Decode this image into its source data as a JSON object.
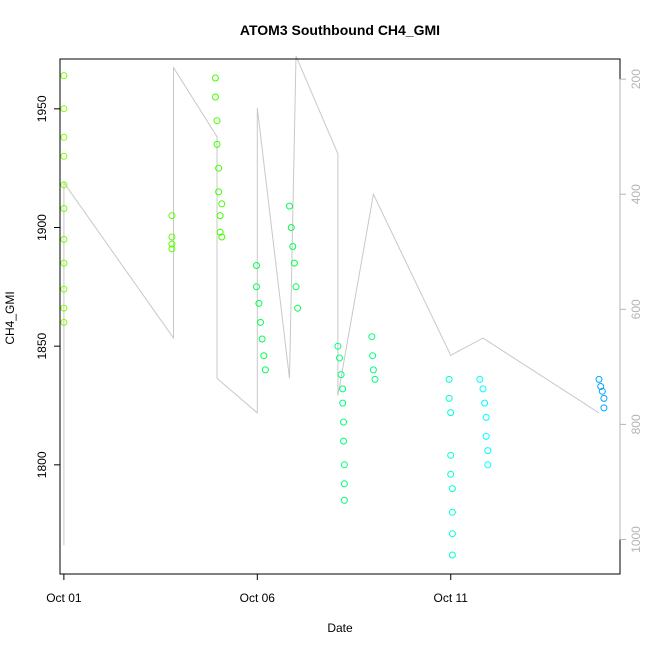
{
  "chart_data": {
    "type": "scatter",
    "title": "ATOM3 Southbound CH4_GMI",
    "xlabel": "Date",
    "ylabel": "CH4_GMI",
    "x_axis": {
      "type": "date",
      "range": [
        "2016-09-30T21:36",
        "2016-10-15T09:00"
      ],
      "ticks": [
        {
          "value": "2016-10-01",
          "label": "Oct 01"
        },
        {
          "value": "2016-10-06",
          "label": "Oct 06"
        },
        {
          "value": "2016-10-11",
          "label": "Oct 11"
        }
      ]
    },
    "y_axis": {
      "range": [
        1754,
        1971
      ],
      "ticks": [
        1800,
        1850,
        1900,
        1950
      ]
    },
    "y2_axis": {
      "range": [
        1060,
        165
      ],
      "inverted": true,
      "ticks": [
        200,
        400,
        600,
        800,
        1000
      ],
      "color": "#b5b5b5"
    },
    "grid": false,
    "legend": "none",
    "series": [
      {
        "marker": "open-circle",
        "color_scale": [
          "#7fff00",
          "#00ff7f",
          "#00bfff",
          "#1e90ff"
        ],
        "points": [
          {
            "x": "2016-10-01T00:00",
            "y": 1964,
            "color": "#80ff00"
          },
          {
            "x": "2016-10-01T00:00",
            "y": 1950,
            "color": "#80ff00"
          },
          {
            "x": "2016-10-01T00:00",
            "y": 1938,
            "color": "#80ff00"
          },
          {
            "x": "2016-10-01T00:00",
            "y": 1930,
            "color": "#80ff00"
          },
          {
            "x": "2016-10-01T00:00",
            "y": 1918,
            "color": "#80ff00"
          },
          {
            "x": "2016-10-01T00:00",
            "y": 1908,
            "color": "#80ff00"
          },
          {
            "x": "2016-10-01T00:00",
            "y": 1895,
            "color": "#80ff00"
          },
          {
            "x": "2016-10-01T00:00",
            "y": 1885,
            "color": "#80ff00"
          },
          {
            "x": "2016-10-01T00:00",
            "y": 1874,
            "color": "#80ff00"
          },
          {
            "x": "2016-10-01T00:00",
            "y": 1866,
            "color": "#80ff00"
          },
          {
            "x": "2016-10-01T00:00",
            "y": 1860,
            "color": "#80ff00"
          },
          {
            "x": "2016-10-03T19:00",
            "y": 1905,
            "color": "#5cff00"
          },
          {
            "x": "2016-10-03T19:00",
            "y": 1896,
            "color": "#5cff00"
          },
          {
            "x": "2016-10-03T19:00",
            "y": 1893,
            "color": "#5cff00"
          },
          {
            "x": "2016-10-03T19:00",
            "y": 1891,
            "color": "#5cff00"
          },
          {
            "x": "2016-10-04T22:00",
            "y": 1963,
            "color": "#40ff00"
          },
          {
            "x": "2016-10-04T22:00",
            "y": 1955,
            "color": "#40ff00"
          },
          {
            "x": "2016-10-04T23:00",
            "y": 1945,
            "color": "#40ff00"
          },
          {
            "x": "2016-10-04T23:00",
            "y": 1935,
            "color": "#40ff00"
          },
          {
            "x": "2016-10-05T00:00",
            "y": 1925,
            "color": "#40ff00"
          },
          {
            "x": "2016-10-05T00:00",
            "y": 1915,
            "color": "#40ff00"
          },
          {
            "x": "2016-10-05T01:00",
            "y": 1905,
            "color": "#40ff00"
          },
          {
            "x": "2016-10-05T01:00",
            "y": 1898,
            "color": "#40ff00"
          },
          {
            "x": "2016-10-05T02:00",
            "y": 1910,
            "color": "#40ff00"
          },
          {
            "x": "2016-10-05T02:00",
            "y": 1896,
            "color": "#40ff00"
          },
          {
            "x": "2016-10-05T23:30",
            "y": 1884,
            "color": "#00ff4a"
          },
          {
            "x": "2016-10-05T23:30",
            "y": 1875,
            "color": "#00ff4a"
          },
          {
            "x": "2016-10-06T01:00",
            "y": 1868,
            "color": "#00ff4a"
          },
          {
            "x": "2016-10-06T02:00",
            "y": 1860,
            "color": "#00ff4a"
          },
          {
            "x": "2016-10-06T03:00",
            "y": 1853,
            "color": "#00ff4a"
          },
          {
            "x": "2016-10-06T04:00",
            "y": 1846,
            "color": "#00ff4a"
          },
          {
            "x": "2016-10-06T05:00",
            "y": 1840,
            "color": "#00ff4a"
          },
          {
            "x": "2016-10-06T20:00",
            "y": 1909,
            "color": "#00ff4a"
          },
          {
            "x": "2016-10-06T21:00",
            "y": 1900,
            "color": "#00ff4a"
          },
          {
            "x": "2016-10-06T22:00",
            "y": 1892,
            "color": "#00ff4a"
          },
          {
            "x": "2016-10-06T23:00",
            "y": 1885,
            "color": "#00ff4a"
          },
          {
            "x": "2016-10-07T00:00",
            "y": 1875,
            "color": "#00ff4a"
          },
          {
            "x": "2016-10-07T01:00",
            "y": 1866,
            "color": "#00ff4a"
          },
          {
            "x": "2016-10-08T02:00",
            "y": 1850,
            "color": "#00ff7c"
          },
          {
            "x": "2016-10-08T03:00",
            "y": 1845,
            "color": "#00ff7c"
          },
          {
            "x": "2016-10-08T04:00",
            "y": 1838,
            "color": "#00ff7c"
          },
          {
            "x": "2016-10-08T05:00",
            "y": 1832,
            "color": "#00ff7c"
          },
          {
            "x": "2016-10-08T05:00",
            "y": 1826,
            "color": "#00ff7c"
          },
          {
            "x": "2016-10-08T05:30",
            "y": 1818,
            "color": "#00ff7c"
          },
          {
            "x": "2016-10-08T05:30",
            "y": 1810,
            "color": "#00ff7c"
          },
          {
            "x": "2016-10-08T06:00",
            "y": 1800,
            "color": "#00ff7c"
          },
          {
            "x": "2016-10-08T06:00",
            "y": 1792,
            "color": "#00ff7c"
          },
          {
            "x": "2016-10-08T06:00",
            "y": 1785,
            "color": "#00ff7c"
          },
          {
            "x": "2016-10-08T23:00",
            "y": 1854,
            "color": "#00ff7c"
          },
          {
            "x": "2016-10-08T23:30",
            "y": 1846,
            "color": "#00ff7c"
          },
          {
            "x": "2016-10-09T00:00",
            "y": 1840,
            "color": "#00ff7c"
          },
          {
            "x": "2016-10-09T01:00",
            "y": 1836,
            "color": "#00ff7c"
          },
          {
            "x": "2016-10-10T23:00",
            "y": 1836,
            "color": "#00ffd0"
          },
          {
            "x": "2016-10-10T23:00",
            "y": 1828,
            "color": "#00ffd0"
          },
          {
            "x": "2016-10-11T00:00",
            "y": 1822,
            "color": "#00ffd0"
          },
          {
            "x": "2016-10-11T00:00",
            "y": 1804,
            "color": "#00ffd0"
          },
          {
            "x": "2016-10-11T00:00",
            "y": 1796,
            "color": "#00ffd0"
          },
          {
            "x": "2016-10-11T01:00",
            "y": 1790,
            "color": "#00ffd0"
          },
          {
            "x": "2016-10-11T01:00",
            "y": 1780,
            "color": "#00ffd0"
          },
          {
            "x": "2016-10-11T01:00",
            "y": 1771,
            "color": "#00ffd0"
          },
          {
            "x": "2016-10-11T01:00",
            "y": 1762,
            "color": "#00ffd0"
          },
          {
            "x": "2016-10-11T18:00",
            "y": 1836,
            "color": "#00ffff"
          },
          {
            "x": "2016-10-11T20:00",
            "y": 1832,
            "color": "#00ffff"
          },
          {
            "x": "2016-10-11T21:00",
            "y": 1826,
            "color": "#00ffff"
          },
          {
            "x": "2016-10-11T22:00",
            "y": 1820,
            "color": "#00ffff"
          },
          {
            "x": "2016-10-11T22:00",
            "y": 1812,
            "color": "#00ffff"
          },
          {
            "x": "2016-10-11T23:00",
            "y": 1806,
            "color": "#00ffff"
          },
          {
            "x": "2016-10-11T23:00",
            "y": 1800,
            "color": "#00ffff"
          },
          {
            "x": "2016-10-14T20:00",
            "y": 1836,
            "color": "#00a6ff"
          },
          {
            "x": "2016-10-14T21:00",
            "y": 1833,
            "color": "#00a6ff"
          },
          {
            "x": "2016-10-14T22:00",
            "y": 1831,
            "color": "#00a6ff"
          },
          {
            "x": "2016-10-14T23:00",
            "y": 1828,
            "color": "#00a6ff"
          },
          {
            "x": "2016-10-14T23:00",
            "y": 1824,
            "color": "#00a6ff"
          }
        ]
      },
      {
        "style": "line",
        "color": "#c8c8c8",
        "axis": "y2",
        "points": [
          {
            "x": "2016-10-01T00:00",
            "y": 1010
          },
          {
            "x": "2016-10-01T00:00",
            "y": 380
          },
          {
            "x": "2016-10-03T20:00",
            "y": 650
          },
          {
            "x": "2016-10-03T20:00",
            "y": 180
          },
          {
            "x": "2016-10-04T23:00",
            "y": 300
          },
          {
            "x": "2016-10-04T23:00",
            "y": 720
          },
          {
            "x": "2016-10-06T00:00",
            "y": 780
          },
          {
            "x": "2016-10-06T00:00",
            "y": 250
          },
          {
            "x": "2016-10-06T20:00",
            "y": 720
          },
          {
            "x": "2016-10-07T00:00",
            "y": 160
          },
          {
            "x": "2016-10-08T02:00",
            "y": 330
          },
          {
            "x": "2016-10-08T02:00",
            "y": 750
          },
          {
            "x": "2016-10-09T00:00",
            "y": 400
          },
          {
            "x": "2016-10-11T00:00",
            "y": 680
          },
          {
            "x": "2016-10-11T20:00",
            "y": 650
          },
          {
            "x": "2016-10-14T20:00",
            "y": 780
          }
        ]
      }
    ]
  }
}
